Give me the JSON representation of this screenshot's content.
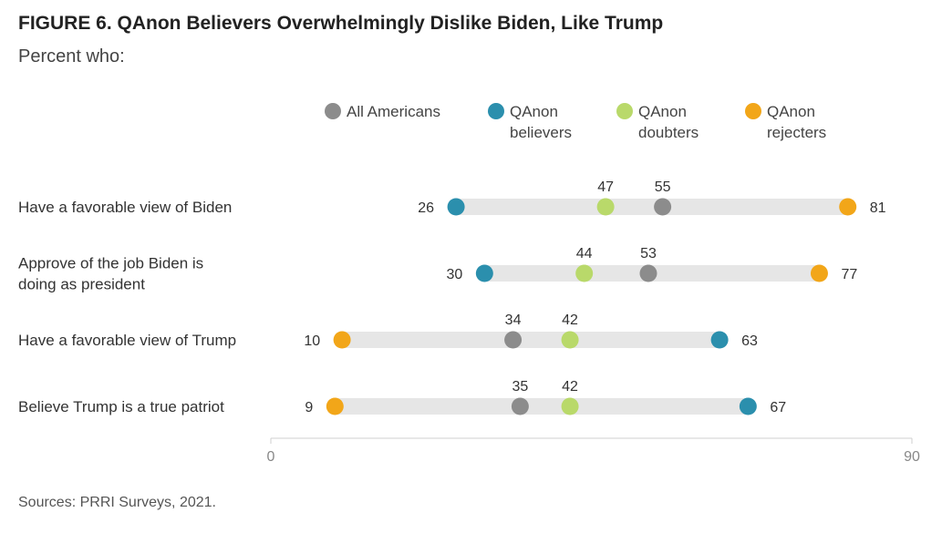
{
  "title": "FIGURE 6.  QAnon Believers Overwhelmingly Dislike Biden, Like Trump",
  "subtitle": "Percent who:",
  "source": "Sources: PRRI Surveys, 2021.",
  "colors": {
    "all_americans": "#8c8c8c",
    "believers": "#2b8fad",
    "doubters": "#b9d96a",
    "rejecters": "#f2a619",
    "track": "#e6e6e6"
  },
  "legend": [
    {
      "key": "all_americans",
      "lines": [
        "All Americans"
      ]
    },
    {
      "key": "believers",
      "lines": [
        "QAnon",
        "believers"
      ]
    },
    {
      "key": "doubters",
      "lines": [
        "QAnon",
        "doubters"
      ]
    },
    {
      "key": "rejecters",
      "lines": [
        "QAnon",
        "rejecters"
      ]
    }
  ],
  "chart_data": {
    "type": "dot",
    "xlim": [
      0,
      90
    ],
    "x_ticks": [
      0,
      90
    ],
    "legend_position": "top",
    "categories": [
      "Have a favorable view of Biden",
      "Approve of the job Biden is doing as president",
      "Have a favorable view of Trump",
      "Believe Trump is a true patriot"
    ],
    "category_lines": [
      [
        "Have a favorable view of Biden"
      ],
      [
        "Approve of the job Biden is",
        "doing as president"
      ],
      [
        "Have a favorable view of Trump"
      ],
      [
        "Believe Trump is a true patriot"
      ]
    ],
    "series": [
      {
        "key": "all_americans",
        "name": "All Americans",
        "values": [
          55,
          53,
          34,
          35
        ]
      },
      {
        "key": "believers",
        "name": "QAnon believers",
        "values": [
          26,
          30,
          63,
          67
        ]
      },
      {
        "key": "doubters",
        "name": "QAnon doubters",
        "values": [
          47,
          44,
          42,
          42
        ]
      },
      {
        "key": "rejecters",
        "name": "QAnon rejecters",
        "values": [
          81,
          77,
          10,
          9
        ]
      }
    ]
  }
}
